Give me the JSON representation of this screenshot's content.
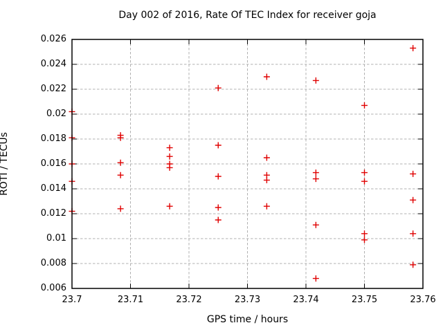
{
  "window": {
    "background_color": "#ffffff"
  },
  "chart_data": {
    "type": "scatter",
    "title": "Day 002 of 2016, Rate Of TEC Index for receiver goja",
    "xlabel": "GPS time / hours",
    "ylabel": "ROTI / TECUs",
    "xlim": [
      23.7,
      23.76
    ],
    "ylim": [
      0.006,
      0.026
    ],
    "xticks": [
      23.7,
      23.71,
      23.72,
      23.73,
      23.74,
      23.75,
      23.76
    ],
    "xtick_labels": [
      "23.7",
      "23.71",
      "23.72",
      "23.73",
      "23.74",
      "23.75",
      "23.76"
    ],
    "yticks": [
      0.006,
      0.008,
      0.01,
      0.012,
      0.014,
      0.016,
      0.018,
      0.02,
      0.022,
      0.024,
      0.026
    ],
    "ytick_labels": [
      "0.006",
      "0.008",
      "0.01",
      "0.012",
      "0.014",
      "0.016",
      "0.018",
      "0.02",
      "0.022",
      "0.024",
      "0.026"
    ],
    "grid": true,
    "legend": "none",
    "marker": "plus",
    "marker_color": "#e00000",
    "grid_color": "#b0b0b0",
    "border_color": "#000000",
    "points": [
      [
        23.7,
        0.0202
      ],
      [
        23.7,
        0.0181
      ],
      [
        23.7,
        0.016
      ],
      [
        23.7,
        0.0146
      ],
      [
        23.7,
        0.0122
      ],
      [
        23.7083,
        0.0183
      ],
      [
        23.7083,
        0.0181
      ],
      [
        23.7083,
        0.0161
      ],
      [
        23.7083,
        0.0151
      ],
      [
        23.7083,
        0.0124
      ],
      [
        23.7167,
        0.0173
      ],
      [
        23.7167,
        0.0166
      ],
      [
        23.7167,
        0.016
      ],
      [
        23.7167,
        0.0157
      ],
      [
        23.7167,
        0.0126
      ],
      [
        23.725,
        0.0221
      ],
      [
        23.725,
        0.0175
      ],
      [
        23.725,
        0.015
      ],
      [
        23.725,
        0.0125
      ],
      [
        23.725,
        0.0115
      ],
      [
        23.7333,
        0.023
      ],
      [
        23.7333,
        0.0165
      ],
      [
        23.7333,
        0.0151
      ],
      [
        23.7333,
        0.0147
      ],
      [
        23.7333,
        0.0126
      ],
      [
        23.7417,
        0.0227
      ],
      [
        23.7417,
        0.0153
      ],
      [
        23.7417,
        0.0148
      ],
      [
        23.7417,
        0.0111
      ],
      [
        23.7417,
        0.0068
      ],
      [
        23.75,
        0.0207
      ],
      [
        23.75,
        0.0153
      ],
      [
        23.75,
        0.0146
      ],
      [
        23.75,
        0.0104
      ],
      [
        23.75,
        0.0099
      ],
      [
        23.7583,
        0.0253
      ],
      [
        23.7583,
        0.0152
      ],
      [
        23.7583,
        0.0131
      ],
      [
        23.7583,
        0.0104
      ],
      [
        23.7583,
        0.0079
      ]
    ]
  }
}
